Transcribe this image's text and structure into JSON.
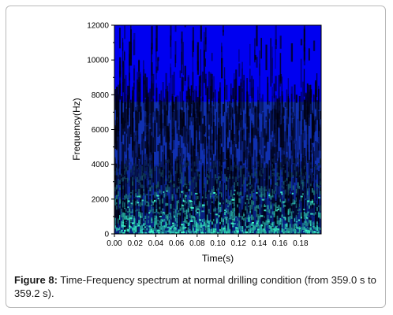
{
  "chart_data": {
    "type": "heatmap",
    "title": "",
    "xlabel": "Time(s)",
    "ylabel": "Frequency(Hz)",
    "xlim": [
      0,
      0.2
    ],
    "ylim": [
      0,
      12000
    ],
    "x_ticks": [
      "0.00",
      "0.02",
      "0.04",
      "0.06",
      "0.08",
      "0.10",
      "0.12",
      "0.14",
      "0.16",
      "0.18"
    ],
    "y_ticks": [
      "0",
      "2000",
      "4000",
      "6000",
      "8000",
      "10000",
      "12000"
    ],
    "x_tick_values": [
      0,
      0.02,
      0.04,
      0.06,
      0.08,
      0.1,
      0.12,
      0.14,
      0.16,
      0.18
    ],
    "y_tick_values": [
      0,
      2000,
      4000,
      6000,
      8000,
      10000,
      12000
    ],
    "background_color": "#0a00ff",
    "colors": {
      "high_band": "#0000f0",
      "mid_band": "#1030b0",
      "energy_low": "#0a1a40",
      "energy_high": "#30e0c0",
      "hot": "#40ffd0"
    },
    "bands": [
      {
        "from": 0,
        "to": 2000,
        "level": "high"
      },
      {
        "from": 2000,
        "to": 4000,
        "level": "medium-high"
      },
      {
        "from": 4000,
        "to": 7600,
        "level": "medium"
      },
      {
        "from": 7600,
        "to": 12000,
        "level": "low"
      }
    ]
  },
  "caption": {
    "label": "Figure 8:",
    "text": " Time-Frequency spectrum at normal drilling condition (from 359.0 s to 359.2 s)."
  }
}
